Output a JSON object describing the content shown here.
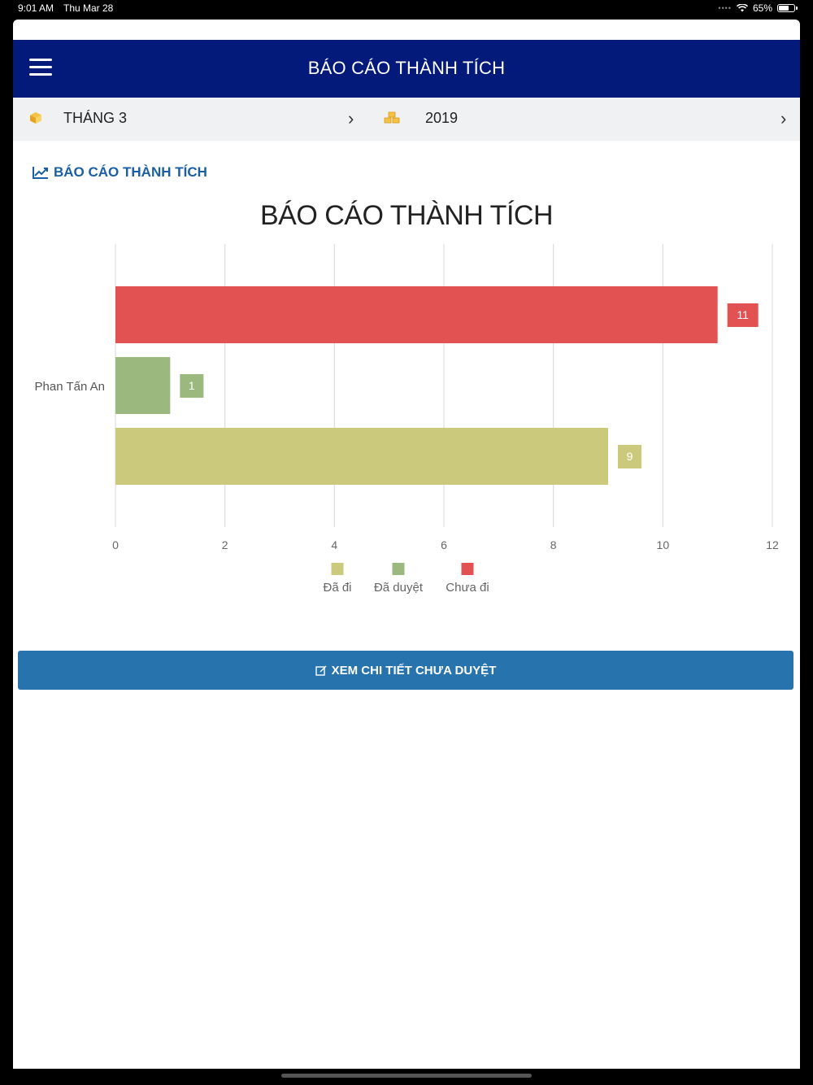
{
  "status_bar": {
    "time": "9:01 AM",
    "date": "Thu Mar 28",
    "battery": "65%"
  },
  "header": {
    "title": "BÁO CÁO THÀNH TÍCH"
  },
  "filters": {
    "month": {
      "label": "THÁNG 3",
      "icon": "box-icon"
    },
    "year": {
      "label": "2019",
      "icon": "boxes-icon"
    }
  },
  "section": {
    "title": "BÁO CÁO THÀNH TÍCH"
  },
  "chart_data": {
    "type": "bar",
    "orientation": "horizontal",
    "title": "BÁO CÁO THÀNH TÍCH",
    "categories": [
      "Phan Tấn An"
    ],
    "series": [
      {
        "name": "Chưa đi",
        "values": [
          11
        ],
        "color": "#e35252"
      },
      {
        "name": "Đã duyệt",
        "values": [
          1
        ],
        "color": "#9bb87e"
      },
      {
        "name": "Đã đi",
        "values": [
          9
        ],
        "color": "#cbc97b"
      }
    ],
    "legend": [
      "Đã đi",
      "Đã duyệt",
      "Chưa đi"
    ],
    "xlim": [
      0,
      12
    ],
    "x_ticks": [
      "0",
      "2",
      "4",
      "6",
      "8",
      "10",
      "12"
    ],
    "grid": true,
    "legend_position": "bottom",
    "data_labels": true
  },
  "actions": {
    "detail_button": "XEM CHI TIẾT CHƯA DUYỆT"
  }
}
